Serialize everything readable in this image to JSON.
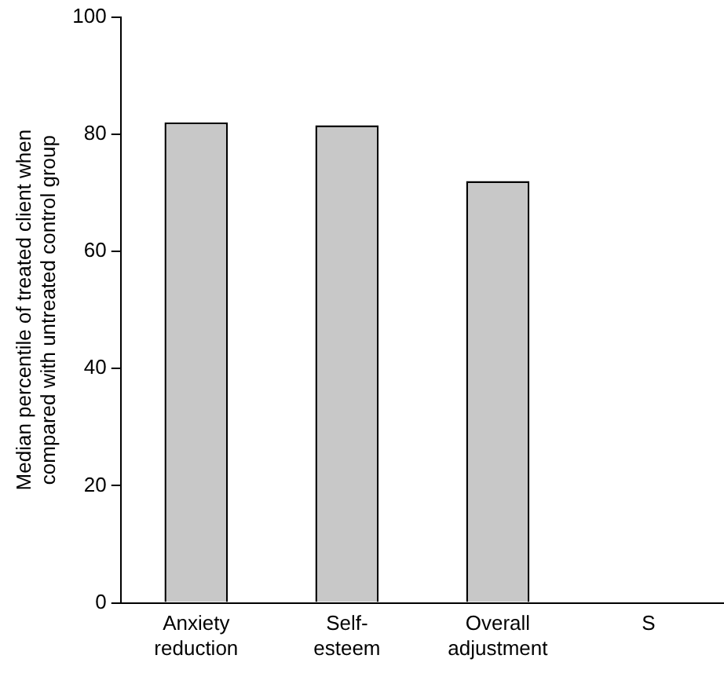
{
  "chart_data": {
    "type": "bar",
    "ylabel": "Median percentile of treated client when\ncompared with untreated control group",
    "categories": [
      "Anxiety\nreduction",
      "Self-\nesteem",
      "Overall\nadjustment",
      "S"
    ],
    "values": [
      82,
      81.5,
      72,
      null
    ],
    "color": "#c8c8c8",
    "ylim": [
      0,
      100
    ],
    "yticks": [
      0,
      20,
      40,
      60,
      80,
      100
    ],
    "grid": false,
    "legend": false
  }
}
